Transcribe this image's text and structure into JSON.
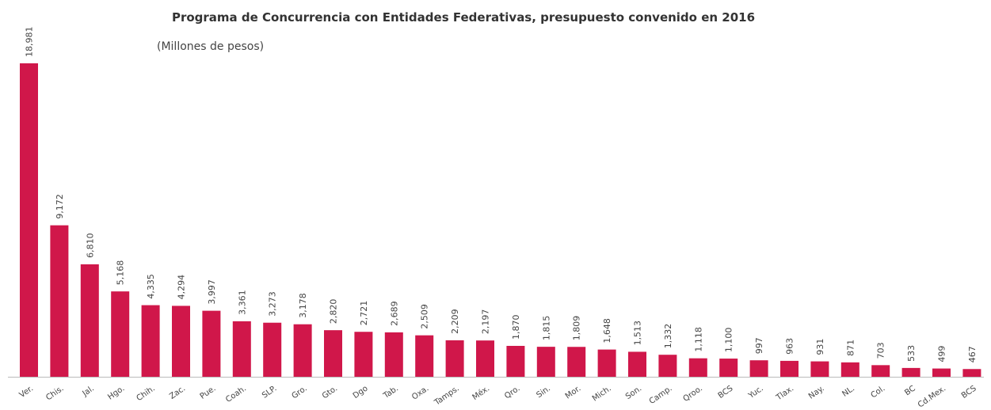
{
  "chart_data": {
    "type": "bar",
    "title": "Programa de Concurrencia con Entidades Federativas, presupuesto convenido en 2016",
    "subtitle": "(Millones de pesos)",
    "categories": [
      "Ver.",
      "Chis.",
      "Jal.",
      "Hgo.",
      "Chih.",
      "Zac.",
      "Pue.",
      "Coah.",
      "SLP.",
      "Gro.",
      "Gto.",
      "Dgo",
      "Tab.",
      "Oxa.",
      "Tamps.",
      "Méx.",
      "Qro.",
      "Sin.",
      "Mor.",
      "Mich.",
      "Son.",
      "Camp.",
      "Qroo.",
      "BCS",
      "Yuc.",
      "Tlax.",
      "Nay.",
      "NL.",
      "Col.",
      "BC",
      "Cd.Mex.",
      "BCS"
    ],
    "values": [
      18981,
      9172,
      6810,
      5168,
      4335,
      4294,
      3997,
      3361,
      3273,
      3178,
      2820,
      2721,
      2689,
      2509,
      2209,
      2197,
      1870,
      1815,
      1809,
      1648,
      1513,
      1332,
      1118,
      1100,
      997,
      963,
      931,
      871,
      703,
      533,
      499,
      467
    ],
    "value_labels": [
      "18,981",
      "9,172",
      "6,810",
      "5,168",
      "4,335",
      "4,294",
      "3,997",
      "3,361",
      "3,273",
      "3,178",
      "2,820",
      "2,721",
      "2,689",
      "2,509",
      "2,209",
      "2,197",
      "1,870",
      "1,815",
      "1,809",
      "1,648",
      "1,513",
      "1,332",
      "1,118",
      "1,100",
      "997",
      "963",
      "931",
      "871",
      "703",
      "533",
      "499",
      "467"
    ],
    "color": "#d0174a"
  }
}
